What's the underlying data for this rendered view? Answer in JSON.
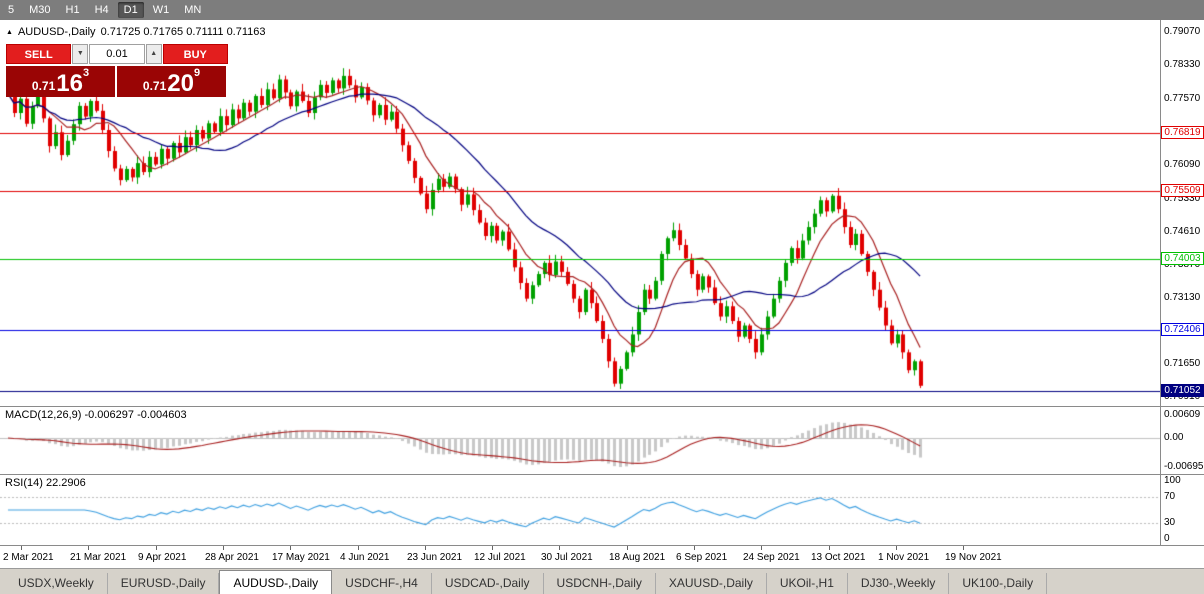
{
  "colors": {
    "up": "#00a000",
    "down": "#e00000",
    "ma_fast": "#a82020",
    "ma_slow": "#000080",
    "macd_bar": "#c8c8c8",
    "macd_signal": "#a82020",
    "rsi": "#3d9fe0",
    "trade_red": "#e31e1e",
    "price_box_red": "#9a0505"
  },
  "toolbar": {
    "timeframes": [
      {
        "label": "5",
        "active": false
      },
      {
        "label": "M30",
        "active": false
      },
      {
        "label": "H1",
        "active": false
      },
      {
        "label": "H4",
        "active": false
      },
      {
        "label": "D1",
        "active": true
      },
      {
        "label": "W1",
        "active": false
      },
      {
        "label": "MN",
        "active": false
      }
    ]
  },
  "chart": {
    "header": {
      "marker": "▲",
      "symbol": "AUDUSD-,Daily",
      "ohlc": "0.71725 0.71765 0.71111 0.71163"
    },
    "price_axis": [
      "0.79070",
      "0.78330",
      "0.77570",
      "0.76810",
      "0.76090",
      "0.75330",
      "0.74610",
      "0.73870",
      "0.73130",
      "0.71650",
      "0.70910"
    ],
    "levels": [
      {
        "label": "0.76819",
        "value": 0.76819,
        "color": "#e00000",
        "style": "outline"
      },
      {
        "label": "0.75509",
        "value": 0.75509,
        "color": "#e00000",
        "style": "outline"
      },
      {
        "label": "0.74003",
        "value": 0.74003,
        "color": "#00c000",
        "style": "outline"
      },
      {
        "label": "0.72406",
        "value": 0.72406,
        "color": "#0000e0",
        "style": "outline"
      },
      {
        "label": "0.71052",
        "value": 0.71052,
        "color": "#000080",
        "style": "filled"
      }
    ],
    "date_labels": [
      "2 Mar 2021",
      "21 Mar 2021",
      "9 Apr 2021",
      "28 Apr 2021",
      "17 May 2021",
      "4 Jun 2021",
      "23 Jun 2021",
      "12 Jul 2021",
      "30 Jul 2021",
      "18 Aug 2021",
      "6 Sep 2021",
      "24 Sep 2021",
      "13 Oct 2021",
      "1 Nov 2021",
      "19 Nov 2021"
    ]
  },
  "trade_panel": {
    "sell_button": "SELL",
    "buy_button": "BUY",
    "volume": "0.01",
    "volume_down_icon": "▼",
    "volume_up_icon": "▲",
    "sell_price": {
      "base": "0.71",
      "pips": "16",
      "pipette": "3"
    },
    "buy_price": {
      "base": "0.71",
      "pips": "20",
      "pipette": "9"
    }
  },
  "macd": {
    "label": "MACD(12,26,9) -0.006297 -0.004603",
    "axis_top": "0.00609",
    "axis_zero": "0.00",
    "axis_bottom": "-0.00695"
  },
  "rsi": {
    "label": "RSI(14) 22.2906",
    "axis": [
      "100",
      "70",
      "30",
      "0"
    ]
  },
  "tabs": [
    {
      "label": "USDX,Weekly",
      "active": false
    },
    {
      "label": "EURUSD-,Daily",
      "active": false
    },
    {
      "label": "AUDUSD-,Daily",
      "active": true
    },
    {
      "label": "USDCHF-,H4",
      "active": false
    },
    {
      "label": "USDCAD-,Daily",
      "active": false
    },
    {
      "label": "USDCNH-,Daily",
      "active": false
    },
    {
      "label": "XAUUSD-,Daily",
      "active": false
    },
    {
      "label": "UKOil-,H1",
      "active": false
    },
    {
      "label": "DJ30-,Weekly",
      "active": false
    },
    {
      "label": "UK100-,Daily",
      "active": false
    }
  ],
  "chart_data": {
    "type": "candlestick",
    "symbol": "AUDUSD",
    "timeframe": "Daily",
    "x_range": [
      "2 Mar 2021",
      "26 Nov 2021"
    ],
    "y_range": [
      0.708,
      0.7925
    ],
    "levels": [
      0.76819,
      0.75509,
      0.74003,
      0.72406,
      0.71052
    ],
    "ma_fast_period": 8,
    "ma_slow_period": 21,
    "macd_params": [
      12,
      26,
      9
    ],
    "rsi_period": 14,
    "last_ohlc": {
      "open": 0.71725,
      "high": 0.71765,
      "low": 0.71111,
      "close": 0.71163
    },
    "closes": [
      0.777,
      0.7726,
      0.7758,
      0.7702,
      0.7741,
      0.7768,
      0.7714,
      0.7652,
      0.7683,
      0.7632,
      0.7664,
      0.7701,
      0.7742,
      0.7718,
      0.7753,
      0.7731,
      0.7688,
      0.7641,
      0.7602,
      0.7576,
      0.7601,
      0.7582,
      0.7614,
      0.7594,
      0.7628,
      0.7611,
      0.7646,
      0.7624,
      0.7659,
      0.7638,
      0.7672,
      0.7654,
      0.7688,
      0.7669,
      0.7703,
      0.7684,
      0.7719,
      0.7699,
      0.7734,
      0.7714,
      0.7749,
      0.7729,
      0.7764,
      0.7744,
      0.7779,
      0.7759,
      0.7801,
      0.7772,
      0.7741,
      0.7774,
      0.7753,
      0.7726,
      0.7761,
      0.7789,
      0.7771,
      0.7799,
      0.7781,
      0.7809,
      0.7788,
      0.7761,
      0.7784,
      0.7754,
      0.7721,
      0.7744,
      0.7711,
      0.7729,
      0.7691,
      0.7654,
      0.7619,
      0.7581,
      0.7546,
      0.7511,
      0.7554,
      0.7579,
      0.7561,
      0.7584,
      0.7556,
      0.7521,
      0.7544,
      0.7509,
      0.7481,
      0.7451,
      0.7474,
      0.7441,
      0.7461,
      0.7421,
      0.7381,
      0.7346,
      0.7311,
      0.7341,
      0.7366,
      0.7391,
      0.7364,
      0.7394,
      0.7371,
      0.7344,
      0.7311,
      0.7281,
      0.7331,
      0.7301,
      0.7261,
      0.7221,
      0.7171,
      0.7121,
      0.7154,
      0.7191,
      0.7231,
      0.7281,
      0.7331,
      0.7311,
      0.7351,
      0.7411,
      0.7446,
      0.7464,
      0.7431,
      0.7401,
      0.7366,
      0.7331,
      0.7361,
      0.7336,
      0.7301,
      0.7271,
      0.7294,
      0.7261,
      0.7226,
      0.7251,
      0.7221,
      0.7191,
      0.7231,
      0.7271,
      0.7311,
      0.7351,
      0.7391,
      0.7424,
      0.7401,
      0.7441,
      0.7471,
      0.7501,
      0.7531,
      0.7506,
      0.7541,
      0.7511,
      0.7471,
      0.7431,
      0.7456,
      0.7411,
      0.7371,
      0.7331,
      0.7291,
      0.7251,
      0.7211,
      0.7231,
      0.7191,
      0.7151,
      0.7171,
      0.71163
    ]
  }
}
